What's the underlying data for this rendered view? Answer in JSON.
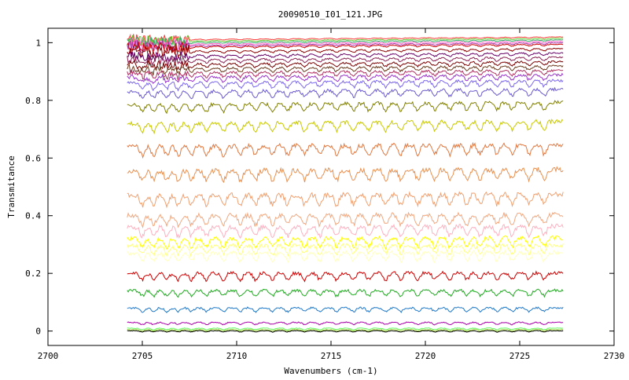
{
  "chart_data": {
    "type": "line",
    "title": "20090510_I01_121.JPG",
    "xlabel": "Wavenumbers (cm-1)",
    "ylabel": "Transmitance",
    "xlim": [
      2700,
      2730
    ],
    "ylim": [
      -0.05,
      1.05
    ],
    "x_ticks": [
      2700,
      2705,
      2710,
      2715,
      2720,
      2725,
      2730
    ],
    "x_tick_labels": [
      "2700",
      "2705",
      "2710",
      "2715",
      "2720",
      "2725",
      "2730"
    ],
    "y_ticks": [
      0,
      0.2,
      0.4,
      0.6,
      0.8,
      1
    ],
    "y_tick_labels": [
      "0",
      "0.2",
      "0.4",
      "0.6",
      "0.8",
      "1"
    ],
    "grid": false,
    "x_range": [
      2704.2,
      2727.3
    ],
    "series": [
      {
        "baseline": 1.01,
        "color": "#ff3b3b"
      },
      {
        "baseline": 1.005,
        "color": "#66cc33"
      },
      {
        "baseline": 1.0,
        "color": "#33aa66"
      },
      {
        "baseline": 0.995,
        "color": "#ff66cc"
      },
      {
        "baseline": 0.99,
        "color": "#aa33aa"
      },
      {
        "baseline": 0.985,
        "color": "#cc0000"
      },
      {
        "baseline": 0.97,
        "color": "#8b0000"
      },
      {
        "baseline": 0.955,
        "color": "#660066"
      },
      {
        "baseline": 0.94,
        "color": "#8b2252"
      },
      {
        "baseline": 0.925,
        "color": "#7a0000"
      },
      {
        "baseline": 0.91,
        "color": "#6b3a1e"
      },
      {
        "baseline": 0.895,
        "color": "#b03060"
      },
      {
        "baseline": 0.88,
        "color": "#9932cc"
      },
      {
        "baseline": 0.86,
        "color": "#7b68ee"
      },
      {
        "baseline": 0.83,
        "color": "#6a5acd"
      },
      {
        "baseline": 0.785,
        "color": "#808000"
      },
      {
        "baseline": 0.72,
        "color": "#c8c800"
      },
      {
        "baseline": 0.64,
        "color": "#e07840"
      },
      {
        "baseline": 0.555,
        "color": "#e89050"
      },
      {
        "baseline": 0.47,
        "color": "#f0a070"
      },
      {
        "baseline": 0.4,
        "color": "#f0a880"
      },
      {
        "baseline": 0.36,
        "color": "#ffb0c0"
      },
      {
        "baseline": 0.32,
        "color": "#ffff00"
      },
      {
        "baseline": 0.295,
        "color": "#ffff80"
      },
      {
        "baseline": 0.27,
        "color": "#ffffc0"
      },
      {
        "baseline": 0.2,
        "color": "#cc0000"
      },
      {
        "baseline": 0.14,
        "color": "#22aa22"
      },
      {
        "baseline": 0.08,
        "color": "#1e78c8"
      },
      {
        "baseline": 0.03,
        "color": "#aa00aa"
      },
      {
        "baseline": 0.01,
        "color": "#66ff66"
      },
      {
        "baseline": 0.005,
        "color": "#9acd32"
      },
      {
        "baseline": 0.001,
        "color": "#000000"
      }
    ]
  }
}
